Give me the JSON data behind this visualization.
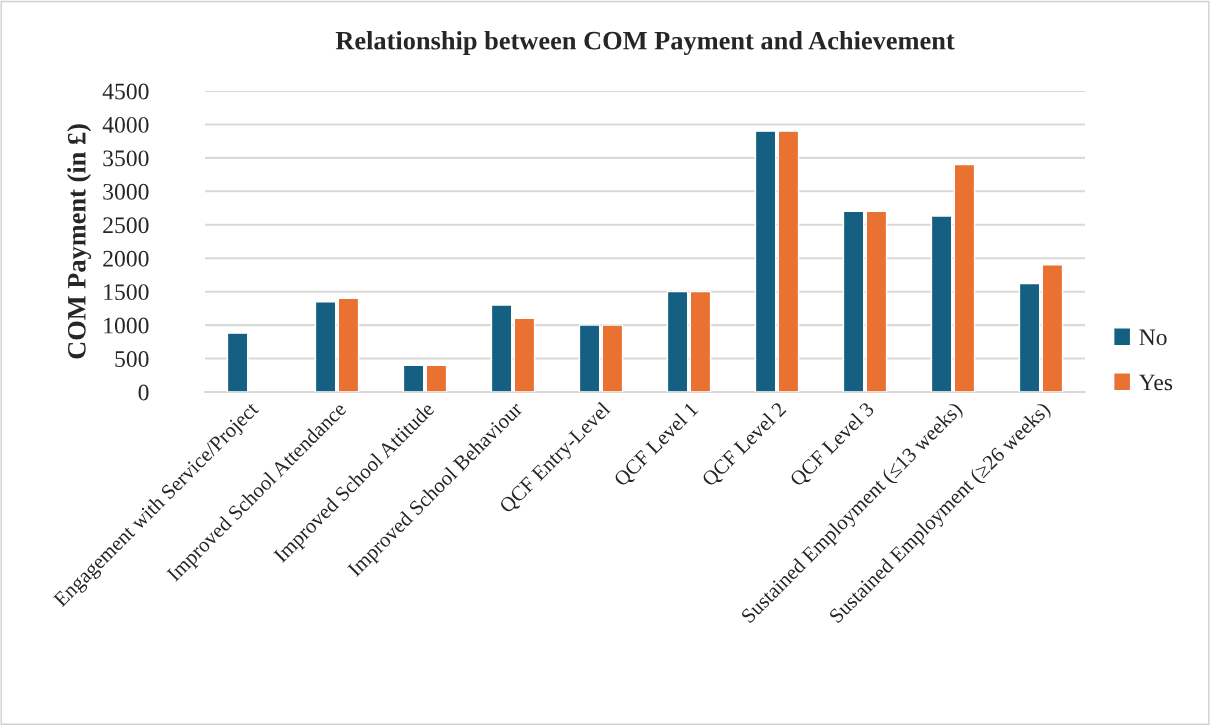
{
  "chart_data": {
    "type": "bar",
    "title": "Relationship between COM Payment and Achievement",
    "ylabel": "COM Payment (in £)",
    "categories": [
      "Engagement with Service/Project",
      "Improved School Attendance",
      "Improved School Attitude",
      "Improved School Behaviour",
      "QCF Entry-Level",
      "QCF Level 1",
      "QCF Level 2",
      "QCF Level 3",
      "Sustained Employment (≤13 weeks)",
      "Sustained Employment (≥26 weeks)"
    ],
    "series": [
      {
        "name": "No",
        "color": "#156082",
        "values": [
          880,
          1350,
          400,
          1300,
          1000,
          1500,
          3900,
          2700,
          2630,
          1620
        ]
      },
      {
        "name": "Yes",
        "color": "#e97132",
        "values": [
          null,
          1400,
          400,
          1100,
          1000,
          1500,
          3900,
          2700,
          3400,
          1900
        ]
      }
    ],
    "ylim": [
      0,
      4500
    ],
    "yticks": [
      0,
      500,
      1000,
      1500,
      2000,
      2500,
      3000,
      3500,
      4000,
      4500
    ],
    "grid": "y",
    "legend": "right"
  }
}
